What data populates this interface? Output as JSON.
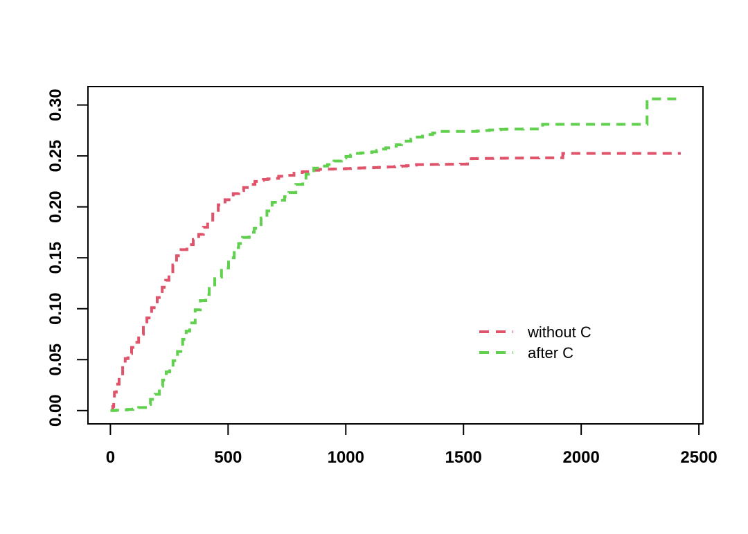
{
  "chart_data": {
    "type": "line",
    "subtype": "step-ecdf",
    "title": "",
    "xlabel": "",
    "ylabel": "",
    "xlim": [
      0,
      2500
    ],
    "ylim": [
      0.0,
      0.3
    ],
    "grid": false,
    "background": "#ffffff",
    "axis_color": "#000000",
    "line_style": "dashed",
    "x_ticks": [
      0,
      500,
      1000,
      1500,
      2000,
      2500
    ],
    "x_tick_labels": [
      "0",
      "500",
      "1000",
      "1500",
      "2000",
      "2500"
    ],
    "y_ticks": [
      0.0,
      0.05,
      0.1,
      0.15,
      0.2,
      0.25,
      0.3
    ],
    "y_tick_labels": [
      "0.00",
      "0.05",
      "0.10",
      "0.15",
      "0.20",
      "0.25",
      "0.30"
    ],
    "legend": {
      "position": "right-center",
      "entries": [
        {
          "label": "without C",
          "color": "#df536b",
          "linetype": "dashed"
        },
        {
          "label": "after C",
          "color": "#61d04f",
          "linetype": "dashed"
        }
      ]
    },
    "series": [
      {
        "name": "without C",
        "color": "#df536b",
        "points": [
          [
            8,
            0
          ],
          [
            10,
            0.004
          ],
          [
            14,
            0.012
          ],
          [
            17,
            0.018
          ],
          [
            25,
            0.026
          ],
          [
            37,
            0.034
          ],
          [
            52,
            0.044
          ],
          [
            63,
            0.051
          ],
          [
            75,
            0.056
          ],
          [
            90,
            0.062
          ],
          [
            102,
            0.067
          ],
          [
            120,
            0.075
          ],
          [
            140,
            0.084
          ],
          [
            155,
            0.091
          ],
          [
            175,
            0.101
          ],
          [
            199,
            0.111
          ],
          [
            220,
            0.121
          ],
          [
            235,
            0.128
          ],
          [
            249,
            0.135
          ],
          [
            265,
            0.143
          ],
          [
            281,
            0.152
          ],
          [
            300,
            0.158
          ],
          [
            325,
            0.163
          ],
          [
            352,
            0.168
          ],
          [
            375,
            0.173
          ],
          [
            395,
            0.18
          ],
          [
            413,
            0.187
          ],
          [
            435,
            0.193
          ],
          [
            458,
            0.202
          ],
          [
            487,
            0.207
          ],
          [
            522,
            0.213
          ],
          [
            545,
            0.216
          ],
          [
            566,
            0.219
          ],
          [
            590,
            0.222
          ],
          [
            614,
            0.225
          ],
          [
            650,
            0.227
          ],
          [
            687,
            0.228
          ],
          [
            715,
            0.23
          ],
          [
            746,
            0.231
          ],
          [
            780,
            0.233
          ],
          [
            816,
            0.2345
          ],
          [
            850,
            0.236
          ],
          [
            885,
            0.2368
          ],
          [
            943,
            0.2372
          ],
          [
            1000,
            0.2376
          ],
          [
            1060,
            0.2382
          ],
          [
            1119,
            0.2386
          ],
          [
            1180,
            0.2392
          ],
          [
            1237,
            0.24
          ],
          [
            1300,
            0.2415
          ],
          [
            1510,
            0.242
          ],
          [
            1517,
            0.2473
          ],
          [
            1600,
            0.2476
          ],
          [
            1750,
            0.248
          ],
          [
            1914,
            0.2482
          ],
          [
            1922,
            0.2525
          ],
          [
            2423,
            0.2525
          ]
        ]
      },
      {
        "name": "after C",
        "color": "#61d04f",
        "points": [
          [
            0,
            0
          ],
          [
            96,
            0.0015
          ],
          [
            120,
            0.003
          ],
          [
            149,
            0.006
          ],
          [
            170,
            0.011
          ],
          [
            190,
            0.016
          ],
          [
            208,
            0.024
          ],
          [
            222,
            0.03
          ],
          [
            237,
            0.038
          ],
          [
            252,
            0.043
          ],
          [
            266,
            0.049
          ],
          [
            285,
            0.058
          ],
          [
            307,
            0.07
          ],
          [
            322,
            0.078
          ],
          [
            337,
            0.086
          ],
          [
            360,
            0.099
          ],
          [
            382,
            0.108
          ],
          [
            405,
            0.114
          ],
          [
            420,
            0.122
          ],
          [
            443,
            0.131
          ],
          [
            472,
            0.14
          ],
          [
            502,
            0.15
          ],
          [
            526,
            0.16
          ],
          [
            545,
            0.164
          ],
          [
            561,
            0.17
          ],
          [
            590,
            0.175
          ],
          [
            611,
            0.179
          ],
          [
            640,
            0.189
          ],
          [
            665,
            0.196
          ],
          [
            687,
            0.2045
          ],
          [
            717,
            0.2065
          ],
          [
            740,
            0.21
          ],
          [
            758,
            0.214
          ],
          [
            788,
            0.222
          ],
          [
            817,
            0.224
          ],
          [
            831,
            0.232
          ],
          [
            864,
            0.238
          ],
          [
            895,
            0.24
          ],
          [
            922,
            0.2415
          ],
          [
            950,
            0.245
          ],
          [
            981,
            0.248
          ],
          [
            1040,
            0.2525
          ],
          [
            1111,
            0.254
          ],
          [
            1170,
            0.258
          ],
          [
            1237,
            0.2625
          ],
          [
            1296,
            0.2685
          ],
          [
            1326,
            0.2695
          ],
          [
            1390,
            0.274
          ],
          [
            1531,
            0.274
          ],
          [
            1610,
            0.2755
          ],
          [
            1680,
            0.2763
          ],
          [
            1828,
            0.2765
          ],
          [
            1836,
            0.281
          ],
          [
            2266,
            0.281
          ],
          [
            2280,
            0.306
          ],
          [
            2420,
            0.306
          ]
        ]
      }
    ]
  }
}
